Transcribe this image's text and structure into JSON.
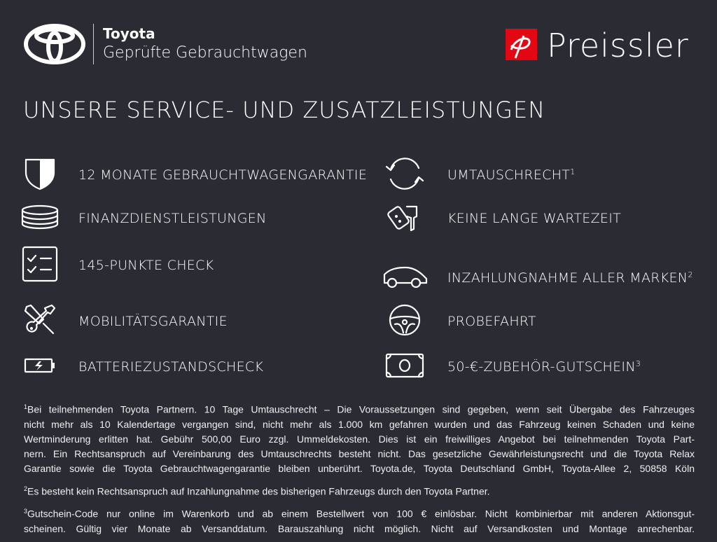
{
  "header": {
    "brand_line1": "Toyota",
    "brand_line2": "Geprüfte Gebrauchtwagen",
    "dealer": "Preissler",
    "dealer_color": "#e30613"
  },
  "title": "UNSERE SERVICE- UND ZUSATZLEISTUNGEN",
  "services_left": [
    {
      "label": "12 MONATE GEBRAUCHTWAGENGARANTIE",
      "sup": "",
      "icon": "shield-icon"
    },
    {
      "label": "FINANZDIENSTLEISTUNGEN",
      "sup": "",
      "icon": "coins-icon"
    },
    {
      "label": "145-PUNKTE CHECK",
      "sup": "",
      "icon": "checklist-icon"
    },
    {
      "label": "MOBILITÄTSGARANTIE",
      "sup": "",
      "icon": "tools-icon"
    },
    {
      "label": "BATTERIEZUSTANDSCHECK",
      "sup": "",
      "icon": "battery-icon"
    }
  ],
  "services_right": [
    {
      "label": "UMTAUSCHRECHT",
      "sup": "1",
      "icon": "exchange-arrows-icon"
    },
    {
      "label": "KEINE LANGE WARTEZEIT",
      "sup": "",
      "icon": "car-key-icon"
    },
    {
      "label": "INZAHLUNGNAHME ALLER MARKEN",
      "sup": "2",
      "icon": "car-icon"
    },
    {
      "label": "PROBEFAHRT",
      "sup": "",
      "icon": "steering-wheel-icon"
    },
    {
      "label": "50-€-ZUBEHÖR-GUTSCHEIN",
      "sup": "3",
      "icon": "voucher-icon"
    }
  ],
  "footnotes": [
    {
      "sup": "1",
      "lines": [
        "Bei teilnehmenden Toyota Partnern. 10 Tage Umtauschrecht – Die Voraussetzungen sind gegeben, wenn seit Übergabe des Fahrzeuges",
        "nicht mehr als 10 Kalendertage vergangen sind, nicht mehr als 1.000 km gefahren wurden und das Fahrzeug keinen Schaden und keine",
        "Wertminderung erlitten hat. Gebühr 500,00 Euro zzgl. Ummeldekosten. Dies ist ein freiwilliges Angebot bei teilnehmenden Toyota Part-",
        "nern. Ein Rechtsanspruch auf Vereinbarung des Umtauschrechts besteht nicht. Das gesetzliche Gewährleistungsrecht und die Toyota Relax",
        "Garantie sowie die Toyota Gebrauchtwagengarantie bleiben unberührt. Toyota.de, Toyota Deutschland GmbH, Toyota-Allee 2, 50858 Köln"
      ]
    },
    {
      "sup": "2",
      "lines": [
        "Es besteht kein Rechtsanspruch auf Inzahlungnahme des bisherigen Fahrzeugs durch den Toyota Partner."
      ]
    },
    {
      "sup": "3",
      "lines": [
        "Gutschein-Code nur online im Warenkorb und ab einem Bestellwert von 100 € einlösbar. Nicht kombinierbar mit anderen Aktionsgut-",
        "scheinen. Gültig vier Monate ab Versanddatum. Barauszahlung nicht möglich. Nicht auf Versandkosten und Montage anrechenbar."
      ]
    }
  ]
}
